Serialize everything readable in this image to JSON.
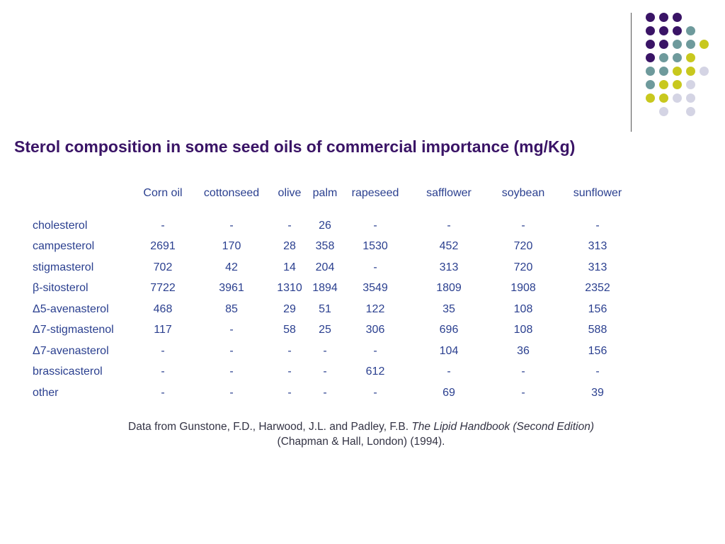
{
  "title": "Sterol composition in some seed oils of commercial importance (mg/Kg)",
  "table": {
    "columns": [
      "",
      "Corn oil",
      "cottonseed",
      "olive",
      "palm",
      "rapeseed",
      "safflower",
      "soybean",
      "sunflower"
    ],
    "rows": [
      {
        "label": "cholesterol",
        "values": [
          "-",
          "-",
          "-",
          "26",
          "-",
          "-",
          "-",
          "-"
        ]
      },
      {
        "label": "campesterol",
        "values": [
          "2691",
          "170",
          "28",
          "358",
          "1530",
          "452",
          "720",
          "313"
        ]
      },
      {
        "label": "stigmasterol",
        "values": [
          "702",
          "42",
          "14",
          "204",
          "-",
          "313",
          "720",
          "313"
        ]
      },
      {
        "label": "β-sitosterol",
        "values": [
          "7722",
          "3961",
          "1310",
          "1894",
          "3549",
          "1809",
          "1908",
          "2352"
        ]
      },
      {
        "label": "Δ5-avenasterol",
        "values": [
          "468",
          "85",
          "29",
          "51",
          "122",
          "35",
          "108",
          "156"
        ]
      },
      {
        "label": "Δ7-stigmastenol",
        "values": [
          "117",
          "-",
          "58",
          "25",
          "306",
          "696",
          "108",
          "588"
        ]
      },
      {
        "label": "Δ7-avenasterol",
        "values": [
          "-",
          "-",
          "-",
          "-",
          "-",
          "104",
          "36",
          "156"
        ]
      },
      {
        "label": "brassicasterol",
        "values": [
          "-",
          "-",
          "-",
          "-",
          "612",
          "-",
          "-",
          "-"
        ]
      },
      {
        "label": "other",
        "values": [
          "-",
          "-",
          "-",
          "-",
          "-",
          "69",
          "-",
          "39"
        ]
      }
    ]
  },
  "caption": {
    "prefix": "Data from Gunstone, F.D., Harwood, J.L. and Padley, F.B. ",
    "book": "The Lipid Handbook (Second Edition)",
    "line2": "(Chapman & Hall, London) (1994)."
  },
  "colors": {
    "title": "#3a1466",
    "table_text": "#2a3f8f",
    "caption_text": "#333344",
    "dot_purple": "#3a1466",
    "dot_teal": "#6e9a9c",
    "dot_yellow": "#c8c81e",
    "dot_lavender": "#d4d4e4"
  },
  "decor": {
    "dot_grid": [
      [
        "dot_purple",
        "dot_purple",
        "dot_purple",
        "",
        "",
        ""
      ],
      [
        "dot_purple",
        "dot_purple",
        "dot_purple",
        "dot_teal",
        "",
        ""
      ],
      [
        "dot_purple",
        "dot_purple",
        "dot_teal",
        "dot_teal",
        "dot_yellow",
        ""
      ],
      [
        "dot_purple",
        "dot_teal",
        "dot_teal",
        "dot_yellow",
        "",
        ""
      ],
      [
        "dot_teal",
        "dot_teal",
        "dot_yellow",
        "dot_yellow",
        "dot_lavender",
        ""
      ],
      [
        "dot_teal",
        "dot_yellow",
        "dot_yellow",
        "dot_lavender",
        "",
        ""
      ],
      [
        "dot_yellow",
        "dot_yellow",
        "dot_lavender",
        "dot_lavender",
        "",
        ""
      ],
      [
        "",
        "dot_lavender",
        "",
        "dot_lavender",
        "",
        ""
      ]
    ]
  }
}
